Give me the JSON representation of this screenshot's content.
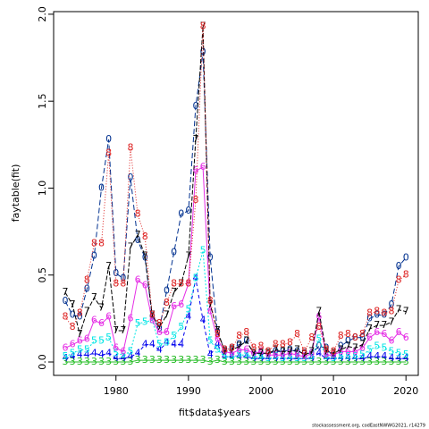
{
  "chart_data": {
    "type": "line",
    "xlabel": "fit$data$years",
    "ylabel": "faytable(fit)",
    "footnote": "stockassessment.org, codEastNWWG2021, r14279",
    "x": [
      1973,
      1974,
      1975,
      1976,
      1977,
      1978,
      1979,
      1980,
      1981,
      1982,
      1983,
      1984,
      1985,
      1986,
      1987,
      1988,
      1989,
      1990,
      1991,
      1992,
      1993,
      1994,
      1995,
      1996,
      1997,
      1998,
      1999,
      2000,
      2001,
      2002,
      2003,
      2004,
      2005,
      2006,
      2007,
      2008,
      2009,
      2010,
      2011,
      2012,
      2013,
      2014,
      2015,
      2016,
      2017,
      2018,
      2019,
      2020
    ],
    "xlim": [
      1971.4,
      2021.7
    ],
    "xticks": [
      1980,
      1990,
      2000,
      2010,
      2020
    ],
    "ylim": [
      -0.077,
      2.015
    ],
    "yticks": [
      {
        "value": 0,
        "label": "0.0"
      },
      {
        "value": 0.5,
        "label": "0.5"
      },
      {
        "value": 1,
        "label": "1.0"
      },
      {
        "value": 1.5,
        "label": "1.5"
      },
      {
        "value": 2,
        "label": "2.0"
      }
    ],
    "series": [
      {
        "name": "0",
        "color": "#00308f",
        "values": [
          0.35,
          0.27,
          0.26,
          0.42,
          0.61,
          1.0,
          1.28,
          0.51,
          0.48,
          1.06,
          0.7,
          0.6,
          0.26,
          0.19,
          0.41,
          0.63,
          0.85,
          0.87,
          1.47,
          1.78,
          0.6,
          0.17,
          0.07,
          0.08,
          0.1,
          0.12,
          0.05,
          0.05,
          0.05,
          0.06,
          0.06,
          0.07,
          0.06,
          0.05,
          0.05,
          0.09,
          0.08,
          0.03,
          0.09,
          0.12,
          0.14,
          0.14,
          0.25,
          0.27,
          0.27,
          0.33,
          0.55,
          0.6
        ]
      },
      {
        "name": "3",
        "color": "#22bb22",
        "values": [
          0.0,
          0.0,
          0.0,
          0.0,
          0.0,
          0.0,
          0.0,
          0.0,
          0.0,
          0.0,
          0.01,
          0.01,
          0.01,
          0.01,
          0.01,
          0.01,
          0.01,
          0.01,
          0.01,
          0.01,
          0.0,
          0.01,
          0.0,
          0.0,
          0.0,
          0.0,
          0.0,
          0.0,
          0.0,
          0.0,
          0.0,
          0.0,
          0.0,
          0.0,
          0.0,
          0.0,
          0.0,
          0.0,
          0.0,
          0.0,
          0.0,
          0.0,
          0.0,
          0.0,
          0.0,
          0.0,
          0.0,
          0.0
        ]
      },
      {
        "name": "4",
        "color": "#0000ee",
        "values": [
          0.02,
          0.03,
          0.04,
          0.04,
          0.05,
          0.04,
          0.05,
          0.02,
          0.02,
          0.03,
          0.05,
          0.1,
          0.1,
          0.07,
          0.11,
          0.1,
          0.1,
          0.26,
          0.48,
          0.24,
          0.04,
          0.1,
          0.03,
          0.03,
          0.03,
          0.03,
          0.02,
          0.02,
          0.02,
          0.02,
          0.02,
          0.02,
          0.02,
          0.02,
          0.02,
          0.05,
          0.02,
          0.02,
          0.02,
          0.02,
          0.02,
          0.02,
          0.03,
          0.03,
          0.03,
          0.02,
          0.02,
          0.02
        ]
      },
      {
        "name": "5",
        "color": "#00e5e5",
        "values": [
          0.03,
          0.05,
          0.07,
          0.07,
          0.12,
          0.12,
          0.14,
          0.05,
          0.04,
          0.06,
          0.22,
          0.23,
          0.24,
          0.1,
          0.11,
          0.15,
          0.2,
          0.3,
          0.48,
          0.64,
          0.12,
          0.07,
          0.03,
          0.03,
          0.04,
          0.04,
          0.03,
          0.03,
          0.02,
          0.03,
          0.02,
          0.03,
          0.02,
          0.02,
          0.03,
          0.13,
          0.03,
          0.02,
          0.03,
          0.03,
          0.03,
          0.04,
          0.07,
          0.09,
          0.08,
          0.06,
          0.05,
          0.04
        ]
      },
      {
        "name": "6",
        "color": "#e52ee5",
        "values": [
          0.08,
          0.1,
          0.12,
          0.13,
          0.24,
          0.22,
          0.26,
          0.08,
          0.06,
          0.25,
          0.47,
          0.44,
          0.24,
          0.17,
          0.17,
          0.32,
          0.33,
          0.45,
          1.1,
          1.12,
          0.29,
          0.13,
          0.06,
          0.05,
          0.07,
          0.07,
          0.05,
          0.06,
          0.04,
          0.04,
          0.04,
          0.05,
          0.04,
          0.03,
          0.05,
          0.26,
          0.04,
          0.04,
          0.06,
          0.06,
          0.06,
          0.08,
          0.14,
          0.17,
          0.16,
          0.12,
          0.17,
          0.14
        ]
      },
      {
        "name": "7",
        "color": "#000000",
        "values": [
          0.4,
          0.33,
          0.16,
          0.29,
          0.37,
          0.31,
          0.55,
          0.18,
          0.18,
          0.66,
          0.73,
          0.61,
          0.27,
          0.2,
          0.27,
          0.4,
          0.45,
          0.61,
          1.28,
          1.93,
          0.33,
          0.18,
          0.06,
          0.07,
          0.09,
          0.12,
          0.05,
          0.05,
          0.05,
          0.07,
          0.06,
          0.06,
          0.07,
          0.04,
          0.06,
          0.29,
          0.06,
          0.05,
          0.07,
          0.09,
          0.08,
          0.1,
          0.19,
          0.21,
          0.21,
          0.23,
          0.3,
          0.29
        ]
      },
      {
        "name": "8",
        "color": "#dd2222",
        "values": [
          0.26,
          0.2,
          0.28,
          0.47,
          0.68,
          0.68,
          1.2,
          0.45,
          0.45,
          1.23,
          0.85,
          0.72,
          0.27,
          0.22,
          0.34,
          0.45,
          0.45,
          0.45,
          0.93,
          1.93,
          0.35,
          0.16,
          0.07,
          0.08,
          0.15,
          0.17,
          0.08,
          0.09,
          0.06,
          0.1,
          0.1,
          0.11,
          0.16,
          0.06,
          0.14,
          0.2,
          0.07,
          0.06,
          0.15,
          0.16,
          0.14,
          0.16,
          0.28,
          0.29,
          0.28,
          0.29,
          0.47,
          0.5
        ]
      }
    ]
  }
}
